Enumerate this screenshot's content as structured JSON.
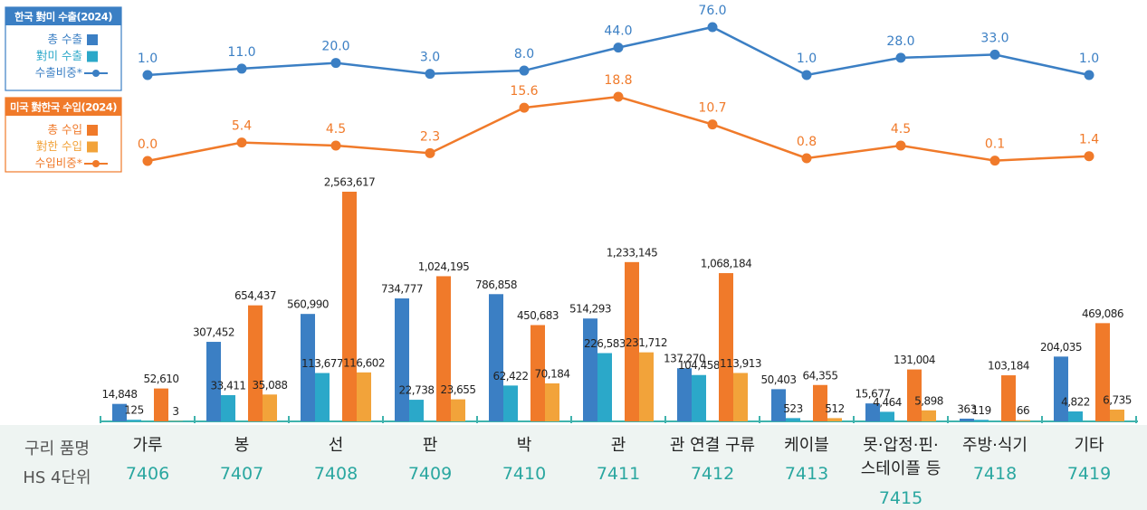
{
  "chart_data": {
    "type": "bar",
    "row_labels": [
      "구리 품명",
      "HS 4단위"
    ],
    "categories": [
      "가루",
      "봉",
      "선",
      "판",
      "박",
      "관",
      "관 연결 구류",
      "케이블",
      "못·압정·핀·\n스테이플 등",
      "주방·식기",
      "기타"
    ],
    "codes": [
      "7406",
      "7407",
      "7408",
      "7409",
      "7410",
      "7411",
      "7412",
      "7413",
      "7415",
      "7418",
      "7419"
    ],
    "bar_scale": "sqrt",
    "groups": [
      {
        "title": "한국 對미 수출(2024)",
        "color": "#3b7fc4",
        "series": [
          {
            "name": "총 수출",
            "type": "bar",
            "color": "#3b7fc4",
            "values": [
              14848,
              307452,
              560990,
              734777,
              786858,
              514293,
              137270,
              50403,
              15677,
              363,
              204035
            ],
            "value_labels": [
              "14,848",
              "307,452",
              "560,990",
              "734,777",
              "786,858",
              "514,293",
              "137,270",
              "50,403",
              "15,677",
              "363",
              "204,035"
            ]
          },
          {
            "name": "對미 수출",
            "type": "bar",
            "color": "#2ba8c9",
            "values": [
              125,
              33411,
              113677,
              22738,
              62422,
              226583,
              104458,
              523,
              4464,
              119,
              4822
            ],
            "value_labels": [
              "125",
              "33,411",
              "113,677",
              "22,738",
              "62,422",
              "226,583",
              "104,458",
              "523",
              "4,464",
              "119",
              "4,822"
            ]
          },
          {
            "name": "수출비중*",
            "type": "line",
            "color": "#3b7fc4",
            "values": [
              1.0,
              11.0,
              20.0,
              3.0,
              8.0,
              44.0,
              76.0,
              1.0,
              28.0,
              33.0,
              1.0
            ],
            "value_labels": [
              "1.0",
              "11.0",
              "20.0",
              "3.0",
              "8.0",
              "44.0",
              "76.0",
              "1.0",
              "28.0",
              "33.0",
              "1.0"
            ]
          }
        ]
      },
      {
        "title": "미국 對한국 수입(2024)",
        "color": "#f07a2a",
        "series": [
          {
            "name": "총 수입",
            "type": "bar",
            "color": "#f07a2a",
            "values": [
              52610,
              654437,
              2563617,
              1024195,
              450683,
              1233145,
              1068184,
              64355,
              131004,
              103184,
              469086
            ],
            "value_labels": [
              "52,610",
              "654,437",
              "2,563,617",
              "1,024,195",
              "450,683",
              "1,233,145",
              "1,068,184",
              "64,355",
              "131,004",
              "103,184",
              "469,086"
            ]
          },
          {
            "name": "對한 수입",
            "type": "bar",
            "color": "#f2a33a",
            "values": [
              3,
              35088,
              116602,
              23655,
              70184,
              231712,
              113913,
              512,
              5898,
              66,
              6735
            ],
            "value_labels": [
              "3",
              "35,088",
              "116,602",
              "23,655",
              "70,184",
              "231,712",
              "113,913",
              "512",
              "5,898",
              "66",
              "6,735"
            ]
          },
          {
            "name": "수입비중*",
            "type": "line",
            "color": "#f07a2a",
            "values": [
              0.0,
              5.4,
              4.5,
              2.3,
              15.6,
              18.8,
              10.7,
              0.8,
              4.5,
              0.1,
              1.4
            ],
            "value_labels": [
              "0.0",
              "5.4",
              "4.5",
              "2.3",
              "15.6",
              "18.8",
              "10.7",
              "0.8",
              "4.5",
              "0.1",
              "1.4"
            ]
          }
        ]
      }
    ]
  }
}
